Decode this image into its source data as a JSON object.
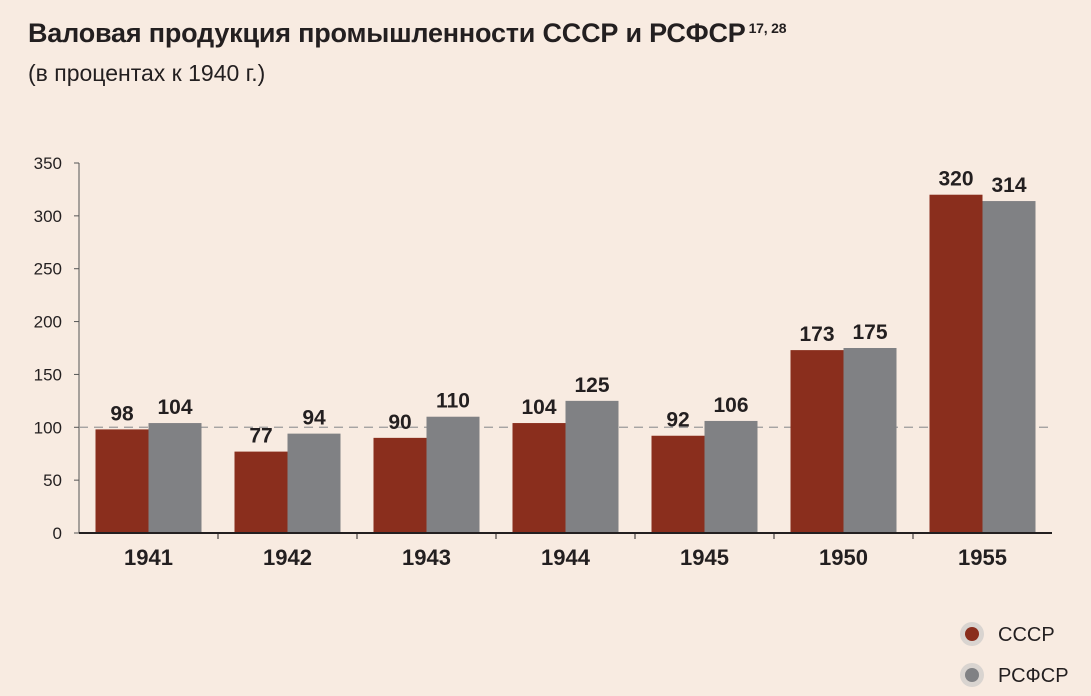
{
  "title": "Валовая продукция промышленности СССР и РСФСР",
  "title_sup": "17, 28",
  "subtitle": "(в процентах к 1940 г.)",
  "chart_data": {
    "type": "bar",
    "categories": [
      "1941",
      "1942",
      "1943",
      "1944",
      "1945",
      "1950",
      "1955"
    ],
    "series": [
      {
        "name": "СССР",
        "color": "#8a2e1d",
        "values": [
          98,
          77,
          90,
          104,
          92,
          173,
          320
        ]
      },
      {
        "name": "РСФСР",
        "color": "#808184",
        "values": [
          104,
          94,
          110,
          125,
          106,
          175,
          314
        ]
      }
    ],
    "ylim": [
      0,
      350
    ],
    "yticks": [
      "0",
      "50",
      "100",
      "150",
      "200",
      "250",
      "300",
      "350"
    ],
    "reference_line": 100,
    "legend_position": "bottom-right"
  }
}
